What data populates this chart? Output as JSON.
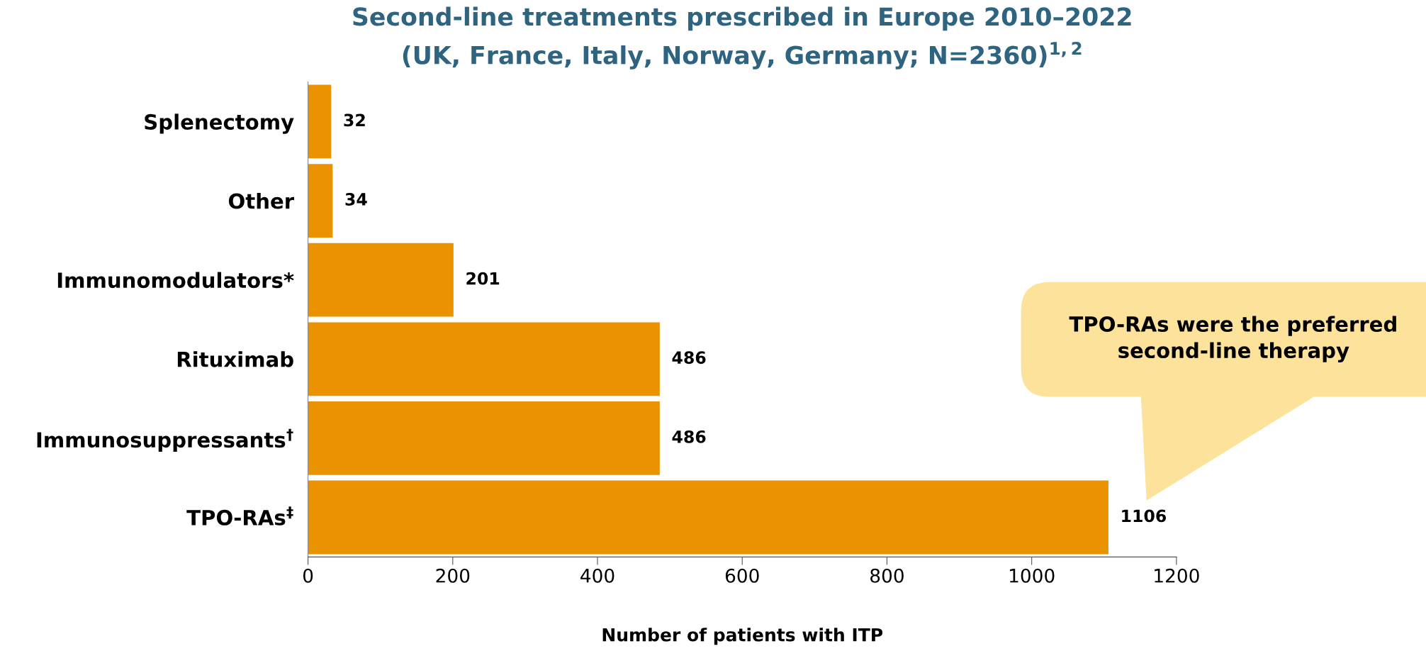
{
  "chart_data": {
    "type": "bar",
    "orientation": "horizontal",
    "title": "Second-line treatments prescribed in Europe 2010–2022\n(UK, France, Italy, Norway, Germany; N=2360)$^{1,2}$",
    "categories": [
      "Splenectomy",
      "Other",
      "Immunomodulators*",
      "Rituximab",
      "Immunosuppressants$^{†}$",
      "TPO-RAs$^{‡}$"
    ],
    "values": [
      32,
      34,
      201,
      486,
      486,
      1106
    ],
    "color": "#ea9200",
    "data_labels": true,
    "xlim": [
      0,
      1200
    ],
    "xticks": [
      0,
      200,
      400,
      600,
      800,
      1000,
      1200
    ],
    "xlabel": "Number of patients with ITP",
    "grid": false,
    "legend": false,
    "annotations": [
      "TPO-RAs were the preferred\nsecond-line therapy"
    ]
  }
}
